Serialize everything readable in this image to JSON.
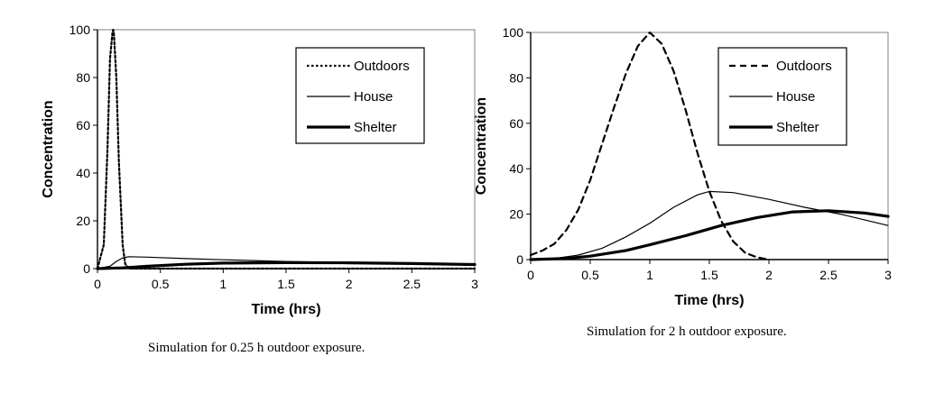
{
  "chart_data": [
    {
      "type": "line",
      "caption": "Simulation for 0.25 h outdoor exposure.",
      "xlabel": "Time (hrs)",
      "ylabel": "Concentration",
      "xlim": [
        0,
        3
      ],
      "ylim": [
        0,
        100
      ],
      "xticks": [
        "0",
        "0.5",
        "1",
        "1.5",
        "2",
        "2.5",
        "3"
      ],
      "yticks": [
        "0",
        "20",
        "40",
        "60",
        "80",
        "100"
      ],
      "legend_position": "top-right",
      "series": [
        {
          "name": "Outdoors",
          "style": "dotted",
          "x": [
            0,
            0.05,
            0.08,
            0.1,
            0.12,
            0.125,
            0.13,
            0.15,
            0.17,
            0.2,
            0.22,
            0.25,
            3
          ],
          "y": [
            0,
            10,
            50,
            88,
            99,
            100,
            99,
            80,
            45,
            10,
            2,
            0,
            0
          ]
        },
        {
          "name": "House",
          "style": "thin",
          "x": [
            0,
            0.1,
            0.15,
            0.2,
            0.25,
            0.4,
            0.7,
            1,
            1.5,
            2,
            2.5,
            3
          ],
          "y": [
            0,
            1,
            3,
            4.5,
            5,
            4.8,
            4.2,
            3.7,
            3,
            2.5,
            2,
            1.5
          ]
        },
        {
          "name": "Shelter",
          "style": "thick",
          "x": [
            0,
            0.2,
            0.4,
            0.7,
            1,
            1.5,
            2,
            2.5,
            3
          ],
          "y": [
            0,
            0.3,
            1,
            1.8,
            2.3,
            2.5,
            2.4,
            2.1,
            1.7
          ]
        }
      ]
    },
    {
      "type": "line",
      "caption": "Simulation for 2 h outdoor exposure.",
      "xlabel": "Time (hrs)",
      "ylabel": "Concentration",
      "xlim": [
        0,
        3
      ],
      "ylim": [
        0,
        100
      ],
      "xticks": [
        "0",
        "0.5",
        "1",
        "1.5",
        "2",
        "2.5",
        "3"
      ],
      "yticks": [
        "0",
        "20",
        "40",
        "60",
        "80",
        "100"
      ],
      "legend_position": "top-right",
      "series": [
        {
          "name": "Outdoors",
          "style": "dashed",
          "x": [
            0,
            0.1,
            0.2,
            0.3,
            0.4,
            0.5,
            0.6,
            0.7,
            0.8,
            0.9,
            1,
            1.1,
            1.2,
            1.3,
            1.4,
            1.5,
            1.6,
            1.7,
            1.8,
            1.9,
            2
          ],
          "y": [
            2,
            4,
            7,
            13,
            22,
            35,
            51,
            67,
            82,
            94,
            100,
            95,
            83,
            66,
            47,
            30,
            17,
            8,
            3,
            1,
            0
          ]
        },
        {
          "name": "House",
          "style": "thin",
          "x": [
            0,
            0.2,
            0.4,
            0.6,
            0.8,
            1,
            1.2,
            1.4,
            1.5,
            1.7,
            2,
            2.3,
            2.6,
            3
          ],
          "y": [
            0,
            0.5,
            2,
            5,
            10,
            16,
            23,
            28.5,
            30,
            29.5,
            26.5,
            23,
            20,
            15
          ]
        },
        {
          "name": "Shelter",
          "style": "thick",
          "x": [
            0,
            0.3,
            0.5,
            0.8,
            1,
            1.3,
            1.6,
            1.9,
            2.2,
            2.5,
            2.8,
            3
          ],
          "y": [
            0,
            0.5,
            1.5,
            4,
            6.5,
            10.5,
            15,
            18.5,
            21,
            21.5,
            20.5,
            19
          ]
        }
      ]
    }
  ]
}
